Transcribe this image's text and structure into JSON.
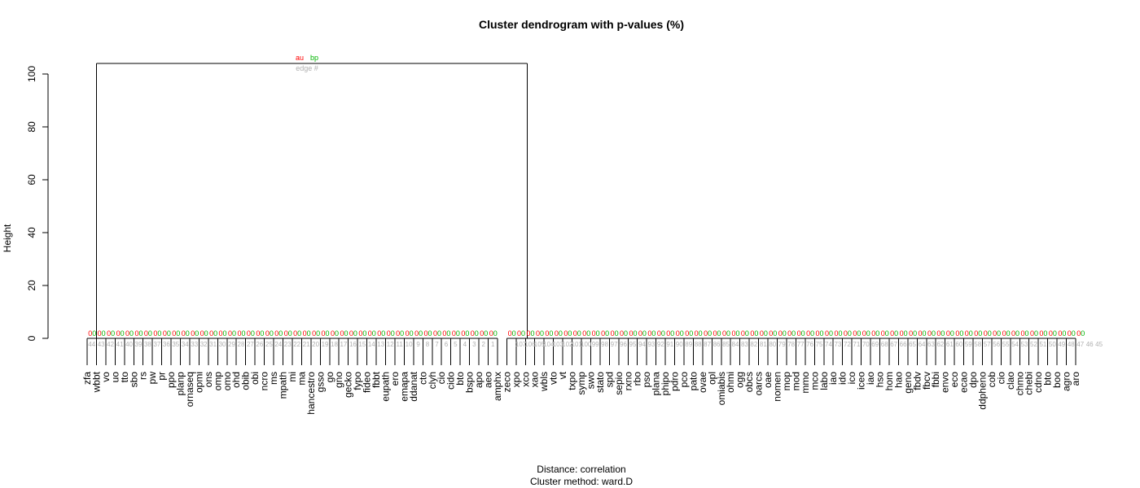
{
  "chart_data": {
    "type": "dendrogram",
    "title": "Cluster dendrogram with p-values (%)",
    "ylabel": "Height",
    "ylim": [
      0,
      105
    ],
    "yticks": [
      0,
      20,
      40,
      60,
      80,
      100
    ],
    "caption_lines": [
      "Distance:  correlation",
      "Cluster method: ward.D"
    ],
    "legend": {
      "au": "au",
      "bp": "bp",
      "edge": "edge #"
    },
    "colors": {
      "au": "#ff0000",
      "bp": "#00b400",
      "edge": "#b0b0b0",
      "line": "#000000"
    },
    "leaves": [
      "zfa",
      "wbbt",
      "vo",
      "uo",
      "tto",
      "sbo",
      "rs",
      "pw",
      "pr",
      "ppo",
      "planp",
      "ornaseq",
      "opmi",
      "ons",
      "omp",
      "omo",
      "ohd",
      "obib",
      "obi",
      "ncro",
      "ms",
      "mpath",
      "mi",
      "ma",
      "hancestro",
      "gsso",
      "go",
      "gno",
      "gecko",
      "fypo",
      "fideo",
      "fbbt",
      "eupath",
      "ero",
      "emapa",
      "ddanat",
      "cto",
      "clyh",
      "cio",
      "cido",
      "bto",
      "bspo",
      "apo",
      "aeo",
      "amphx",
      "zeco",
      "xpo",
      "xco",
      "xao",
      "wbls",
      "vto",
      "vt",
      "txpo",
      "symp",
      "swo",
      "stato",
      "spd",
      "sepio",
      "rxno",
      "rbo",
      "pso",
      "plana",
      "phipo",
      "pdro",
      "pco",
      "pato",
      "ovae",
      "opl",
      "omiabis",
      "ohmi",
      "ogg",
      "obcs",
      "oarcs",
      "oae",
      "nomen",
      "mop",
      "mod",
      "mmo",
      "mco",
      "labo",
      "iao",
      "ido",
      "ico",
      "iceo",
      "iao",
      "hso",
      "hom",
      "hao",
      "geno",
      "fbdv",
      "fbcv",
      "fbbi",
      "envo",
      "eco",
      "ecao",
      "dpo",
      "ddpheno",
      "cob",
      "cio",
      "clao",
      "chmo",
      "chebi",
      "cdno",
      "bto",
      "boo",
      "agro",
      "aro"
    ],
    "root": {
      "height": 104,
      "au": "au",
      "bp": "bp"
    },
    "au_values": [
      "0",
      "0",
      "0",
      "0",
      "0",
      "0",
      "0",
      "0",
      "0",
      "0",
      "0",
      "0",
      "0",
      "0",
      "0",
      "0",
      "0",
      "0",
      "0",
      "0",
      "0",
      "0",
      "0",
      "0",
      "0",
      "0",
      "0",
      "0",
      "0",
      "0",
      "0",
      "0",
      "0",
      "0",
      "0",
      "0",
      "0",
      "0",
      "0",
      "0",
      "0",
      "0",
      "0",
      "0",
      "0",
      "0",
      "0",
      "0",
      "0",
      "0",
      "0",
      "0",
      "0",
      "0",
      "0",
      "0",
      "0",
      "0",
      "0",
      "0",
      "0",
      "0",
      "0",
      "0",
      "0",
      "0",
      "0",
      "0",
      "0",
      "0",
      "0",
      "0",
      "0",
      "0",
      "0",
      "0",
      "0",
      "0",
      "0",
      "0",
      "0",
      "0",
      "0",
      "0",
      "0",
      "0",
      "0",
      "0",
      "0",
      "0",
      "0",
      "0",
      "0",
      "0",
      "0",
      "0",
      "0",
      "0",
      "0",
      "0",
      "0",
      "0",
      "0",
      "0",
      "0",
      "0",
      "0",
      "0"
    ],
    "bp_values": [
      "0",
      "0",
      "0",
      "0",
      "0",
      "0",
      "0",
      "0",
      "0",
      "0",
      "0",
      "0",
      "0",
      "0",
      "0",
      "0",
      "0",
      "0",
      "0",
      "0",
      "0",
      "0",
      "0",
      "0",
      "0",
      "0",
      "0",
      "0",
      "0",
      "0",
      "0",
      "0",
      "0",
      "0",
      "0",
      "0",
      "0",
      "0",
      "0",
      "0",
      "0",
      "0",
      "0",
      "0",
      "0",
      "0",
      "0",
      "0",
      "0",
      "0",
      "0",
      "0",
      "0",
      "0",
      "0",
      "0",
      "0",
      "0",
      "0",
      "0",
      "0",
      "0",
      "0",
      "0",
      "0",
      "0",
      "0",
      "0",
      "0",
      "0",
      "0",
      "0",
      "0",
      "0",
      "0",
      "0",
      "0",
      "0",
      "0",
      "0",
      "0",
      "0",
      "0",
      "0",
      "0",
      "0",
      "0",
      "0",
      "0",
      "0",
      "0",
      "0",
      "0",
      "0",
      "0",
      "0",
      "0",
      "0",
      "0",
      "0",
      "0",
      "0",
      "0",
      "0",
      "0",
      "0",
      "0",
      "0"
    ],
    "edge_numbers": [
      "44",
      "43",
      "42",
      "41",
      "40",
      "39",
      "38",
      "37",
      "36",
      "35",
      "34",
      "33",
      "32",
      "31",
      "30",
      "29",
      "28",
      "27",
      "26",
      "25",
      "24",
      "23",
      "22",
      "21",
      "20",
      "19",
      "18",
      "17",
      "16",
      "15",
      "14",
      "13",
      "12",
      "11",
      "10",
      "9",
      "8",
      "7",
      "6",
      "5",
      "4",
      "3",
      "2",
      "1",
      "",
      "",
      "107",
      "106",
      "105",
      "104",
      "103",
      "102",
      "101",
      "100",
      "99",
      "98",
      "97",
      "96",
      "95",
      "94",
      "93",
      "92",
      "91",
      "90",
      "89",
      "88",
      "87",
      "86",
      "85",
      "84",
      "83",
      "82",
      "81",
      "80",
      "79",
      "78",
      "77",
      "76",
      "75",
      "74",
      "73",
      "72",
      "71",
      "70",
      "69",
      "68",
      "67",
      "66",
      "65",
      "64",
      "63",
      "62",
      "61",
      "60",
      "59",
      "58",
      "57",
      "56",
      "55",
      "54",
      "53",
      "52",
      "51",
      "50",
      "49",
      "48",
      "47",
      "46",
      "45"
    ]
  }
}
